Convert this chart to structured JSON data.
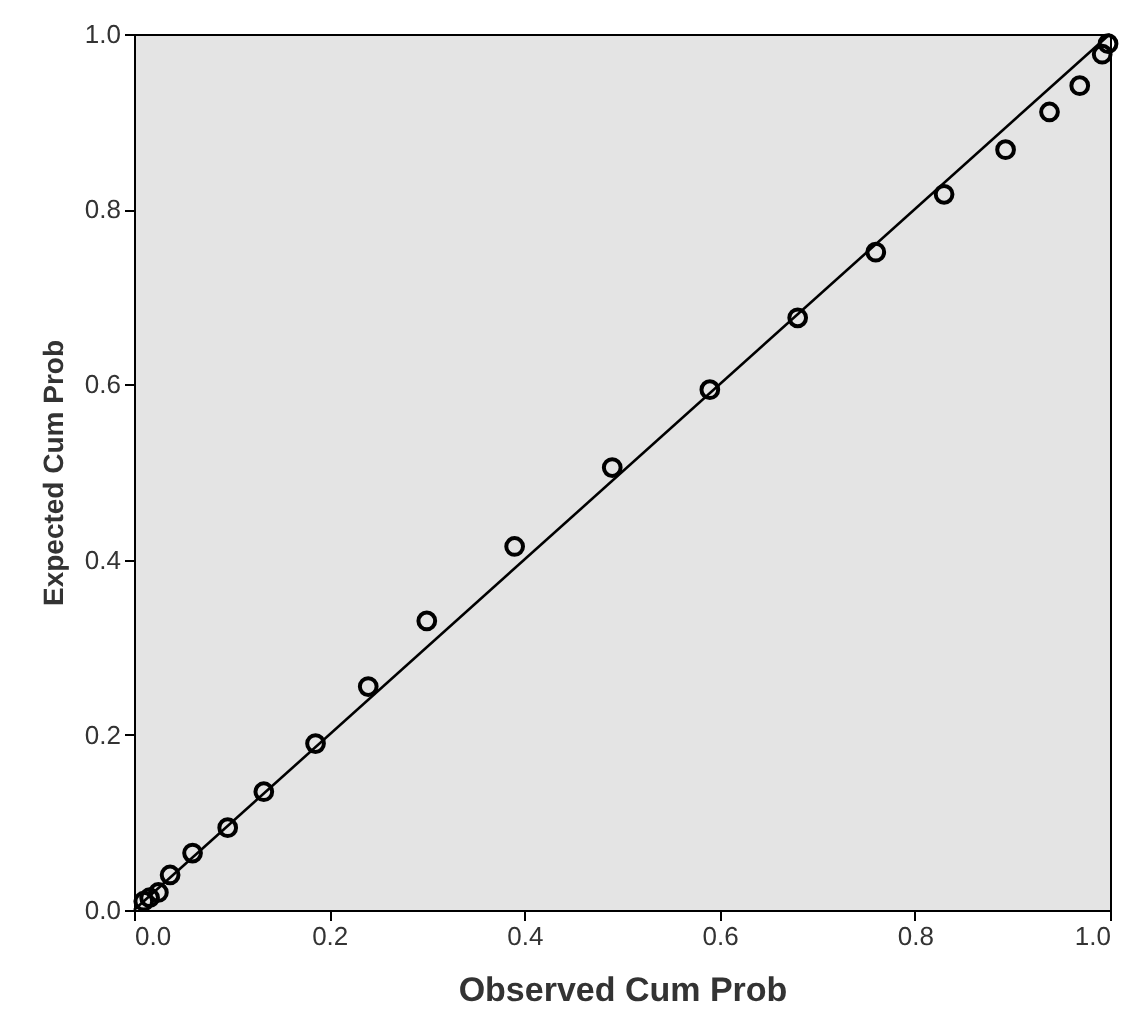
{
  "chart_data": {
    "type": "scatter",
    "xlabel": "Observed Cum Prob",
    "ylabel": "Expected Cum Prob",
    "xlim": [
      0,
      1
    ],
    "ylim": [
      0,
      1
    ],
    "xticks": [
      {
        "value": 0,
        "label": "0.0"
      },
      0.2,
      0.4,
      0.6,
      0.8,
      {
        "value": 1,
        "label": "1.0"
      }
    ],
    "yticks": [
      {
        "value": 0,
        "label": "0.0"
      },
      0.2,
      0.4,
      0.6,
      0.8,
      {
        "value": 1,
        "label": "1.0"
      }
    ],
    "grid": false,
    "series": [
      {
        "marker": "circle",
        "color": "#000000",
        "x": [
          0.01,
          0.016,
          0.025,
          0.037,
          0.06,
          0.096,
          0.133,
          0.186,
          0.24,
          0.3,
          0.39,
          0.49,
          0.59,
          0.68,
          0.76,
          0.83,
          0.893,
          0.938,
          0.969,
          0.992,
          0.998
        ],
        "values": [
          0.01,
          0.014,
          0.02,
          0.04,
          0.065,
          0.094,
          0.135,
          0.19,
          0.255,
          0.33,
          0.415,
          0.505,
          0.594,
          0.676,
          0.751,
          0.817,
          0.868,
          0.911,
          0.941,
          0.977,
          0.989
        ]
      },
      {
        "type": "line",
        "color": "#000000",
        "x": [
          0,
          1
        ],
        "values": [
          0,
          1
        ]
      }
    ]
  }
}
